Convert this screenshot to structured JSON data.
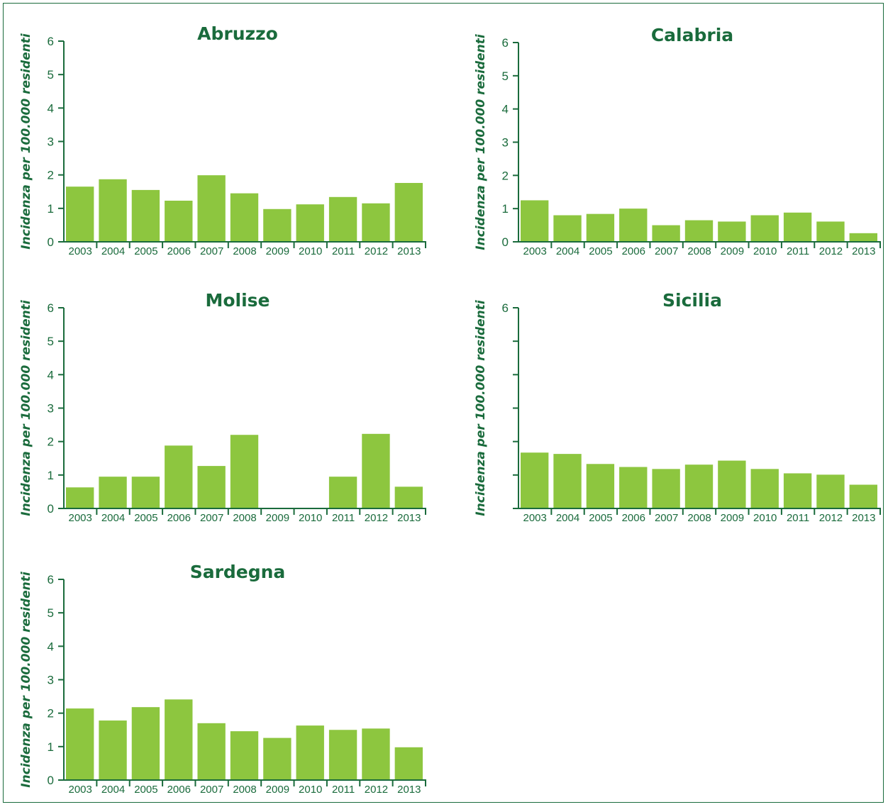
{
  "chart_data": [
    {
      "type": "bar",
      "title": "Abruzzo",
      "ylabel": "Incidenza per 100.000 residenti",
      "xlabel": "",
      "categories": [
        "2003",
        "2004",
        "2005",
        "2006",
        "2007",
        "2008",
        "2009",
        "2010",
        "2011",
        "2012",
        "2013"
      ],
      "values": [
        1.65,
        1.87,
        1.55,
        1.23,
        1.99,
        1.45,
        0.98,
        1.12,
        1.34,
        1.15,
        1.76
      ],
      "ylim": [
        0,
        6
      ],
      "yticks": [
        "0",
        "1",
        "2",
        "3",
        "4",
        "5",
        "6"
      ],
      "grid": false,
      "bar_color": "#8dc63f"
    },
    {
      "type": "bar",
      "title": "Calabria",
      "ylabel": "Incidenza per 100.000 residenti",
      "xlabel": "",
      "categories": [
        "2003",
        "2004",
        "2005",
        "2006",
        "2007",
        "2008",
        "2009",
        "2010",
        "2011",
        "2012",
        "2013"
      ],
      "values": [
        1.25,
        0.8,
        0.84,
        1.0,
        0.5,
        0.65,
        0.61,
        0.8,
        0.88,
        0.61,
        0.26
      ],
      "ylim": [
        0,
        6
      ],
      "yticks": [
        "0",
        "1",
        "2",
        "3",
        "4",
        "5",
        "6"
      ],
      "grid": false,
      "bar_color": "#8dc63f"
    },
    {
      "type": "bar",
      "title": "Molise",
      "ylabel": "Incidenza per 100.000 residenti",
      "xlabel": "",
      "categories": [
        "2003",
        "2004",
        "2005",
        "2006",
        "2007",
        "2008",
        "2009",
        "2010",
        "2011",
        "2012",
        "2013"
      ],
      "values": [
        0.63,
        0.95,
        0.95,
        1.88,
        1.27,
        2.2,
        0,
        0,
        0.95,
        2.23,
        0.65
      ],
      "ylim": [
        0,
        6
      ],
      "yticks": [
        "0",
        "1",
        "2",
        "3",
        "4",
        "5",
        "6"
      ],
      "grid": false,
      "bar_color": "#8dc63f"
    },
    {
      "type": "bar",
      "title": "Sicilia",
      "ylabel": "Incidenza per 100.000 residenti",
      "xlabel": "",
      "categories": [
        "2003",
        "2004",
        "2005",
        "2006",
        "2007",
        "2008",
        "2009",
        "2010",
        "2011",
        "2012",
        "2013"
      ],
      "values": [
        1.67,
        1.63,
        1.33,
        1.24,
        1.18,
        1.31,
        1.43,
        1.18,
        1.05,
        1.01,
        0.71
      ],
      "ylim": [
        0,
        6
      ],
      "yticks": [
        "",
        "",
        "",
        "",
        "",
        "",
        "6"
      ],
      "grid": false,
      "bar_color": "#8dc63f"
    },
    {
      "type": "bar",
      "title": "Sardegna",
      "ylabel": "Incidenza per 100.000 residenti",
      "xlabel": "",
      "categories": [
        "2003",
        "2004",
        "2005",
        "2006",
        "2007",
        "2008",
        "2009",
        "2010",
        "2011",
        "2012",
        "2013"
      ],
      "values": [
        2.14,
        1.78,
        2.18,
        2.41,
        1.7,
        1.46,
        1.26,
        1.63,
        1.5,
        1.54,
        0.98
      ],
      "ylim": [
        0,
        6
      ],
      "yticks": [
        "0",
        "1",
        "2",
        "3",
        "4",
        "5",
        "6"
      ],
      "grid": false,
      "bar_color": "#8dc63f"
    }
  ]
}
